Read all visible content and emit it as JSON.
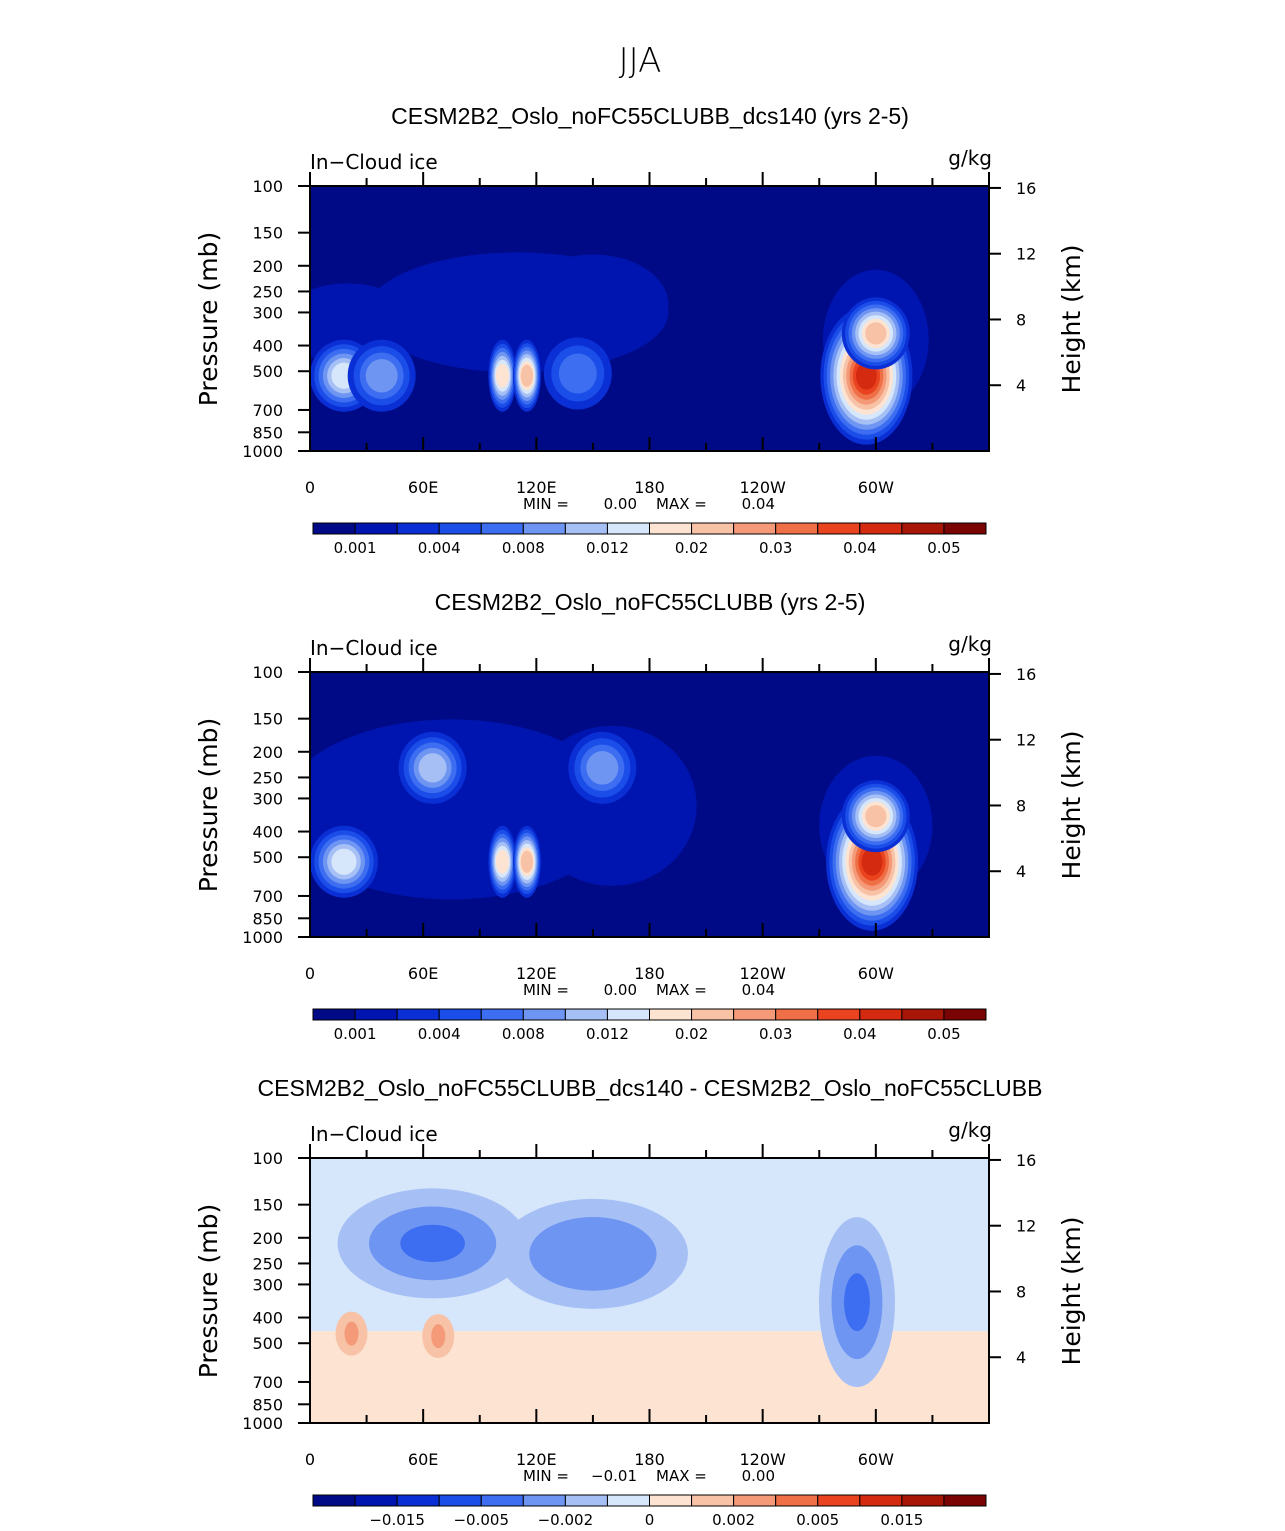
{
  "figure": {
    "title": "JJA"
  },
  "colors": {
    "panel_background": "#000a87",
    "diff_background": "#d6e6fb",
    "diff_positive": "#fde4d2",
    "abs_scale": [
      "#000a87",
      "#0015b0",
      "#0a2fd4",
      "#1b4ee8",
      "#3d6df0",
      "#6e95f2",
      "#a6c0f6",
      "#d6e6fb",
      "#fde4d2",
      "#f8c2a6",
      "#f49a78",
      "#ef6f47",
      "#e9441f",
      "#d42a10",
      "#a81607",
      "#7a0303"
    ],
    "diff_scale": [
      "#000a87",
      "#0015b0",
      "#0a2fd4",
      "#1b4ee8",
      "#3d6df0",
      "#6e95f2",
      "#a6c0f6",
      "#d6e6fb",
      "#fde4d2",
      "#f8c2a6",
      "#f49a78",
      "#ef6f47",
      "#e9441f",
      "#d42a10",
      "#a81607",
      "#7a0303"
    ]
  },
  "chart_data": [
    {
      "type": "heatmap",
      "title": "CESM2B2_Oslo_noFC55CLUBB_dcs140 (yrs 2-5)",
      "variable": "In−Cloud ice",
      "units": "g/kg",
      "ylabel": "Pressure (mb)",
      "y2label": "Height (km)",
      "xticklabels": [
        "0",
        "60E",
        "120E",
        "180",
        "120W",
        "60W"
      ],
      "yticklabels": [
        "100",
        "150",
        "200",
        "250",
        "300",
        "400",
        "500",
        "700",
        "850",
        "1000"
      ],
      "y2ticklabels": [
        "16",
        "12",
        "8",
        "4"
      ],
      "xlim": [
        0,
        360
      ],
      "ylim": [
        1000,
        100
      ],
      "y_scale": "log",
      "min_label": "MIN =",
      "min_value": "0.00",
      "max_label": "MAX =",
      "max_value": "0.04",
      "colorbar_labels": [
        "0.001",
        "0.004",
        "0.008",
        "0.012",
        "0.02",
        "0.03",
        "0.04",
        "0.05"
      ],
      "features": [
        {
          "lon": 18,
          "p": 520,
          "level": 6
        },
        {
          "lon": 38,
          "p": 520,
          "level": 4
        },
        {
          "lon": 102,
          "p": 520,
          "level": 7
        },
        {
          "lon": 115,
          "p": 520,
          "level": 8
        },
        {
          "lon": 142,
          "p": 510,
          "level": 3
        },
        {
          "lon": 295,
          "p": 520,
          "level": 12
        },
        {
          "lon": 300,
          "p": 360,
          "level": 8
        }
      ]
    },
    {
      "type": "heatmap",
      "title": "CESM2B2_Oslo_noFC55CLUBB (yrs 2-5)",
      "variable": "In−Cloud ice",
      "units": "g/kg",
      "ylabel": "Pressure (mb)",
      "y2label": "Height (km)",
      "xticklabels": [
        "0",
        "60E",
        "120E",
        "180",
        "120W",
        "60W"
      ],
      "yticklabels": [
        "100",
        "150",
        "200",
        "250",
        "300",
        "400",
        "500",
        "700",
        "850",
        "1000"
      ],
      "y2ticklabels": [
        "16",
        "12",
        "8",
        "4"
      ],
      "xlim": [
        0,
        360
      ],
      "ylim": [
        1000,
        100
      ],
      "y_scale": "log",
      "min_label": "MIN =",
      "min_value": "0.00",
      "max_label": "MAX =",
      "max_value": "0.04",
      "colorbar_labels": [
        "0.001",
        "0.004",
        "0.008",
        "0.012",
        "0.02",
        "0.03",
        "0.04",
        "0.05"
      ],
      "features": [
        {
          "lon": 65,
          "p": 230,
          "level": 5
        },
        {
          "lon": 155,
          "p": 230,
          "level": 4
        },
        {
          "lon": 18,
          "p": 520,
          "level": 6
        },
        {
          "lon": 102,
          "p": 520,
          "level": 7
        },
        {
          "lon": 115,
          "p": 520,
          "level": 8
        },
        {
          "lon": 298,
          "p": 520,
          "level": 12
        },
        {
          "lon": 300,
          "p": 350,
          "level": 8
        }
      ]
    },
    {
      "type": "heatmap",
      "title": "CESM2B2_Oslo_noFC55CLUBB_dcs140 - CESM2B2_Oslo_noFC55CLUBB",
      "variable": "In−Cloud ice",
      "units": "g/kg",
      "ylabel": "Pressure (mb)",
      "y2label": "Height (km)",
      "xticklabels": [
        "0",
        "60E",
        "120E",
        "180",
        "120W",
        "60W"
      ],
      "yticklabels": [
        "100",
        "150",
        "200",
        "250",
        "300",
        "400",
        "500",
        "700",
        "850",
        "1000"
      ],
      "y2ticklabels": [
        "16",
        "12",
        "8",
        "4"
      ],
      "xlim": [
        0,
        360
      ],
      "ylim": [
        1000,
        100
      ],
      "y_scale": "log",
      "min_label": "MIN =",
      "min_value": "−0.01",
      "max_label": "MAX =",
      "max_value": "0.00",
      "colorbar_labels": [
        "−0.015",
        "−0.005",
        "−0.002",
        "0",
        "0.002",
        "0.005",
        "0.015"
      ],
      "features": [
        {
          "lon": 65,
          "p": 210,
          "level": -0.005
        },
        {
          "lon": 150,
          "p": 230,
          "level": -0.002
        },
        {
          "lon": 290,
          "p": 350,
          "level": -0.005
        },
        {
          "lon": 22,
          "p": 460,
          "level": 0.002
        },
        {
          "lon": 68,
          "p": 470,
          "level": 0.002
        }
      ]
    }
  ]
}
